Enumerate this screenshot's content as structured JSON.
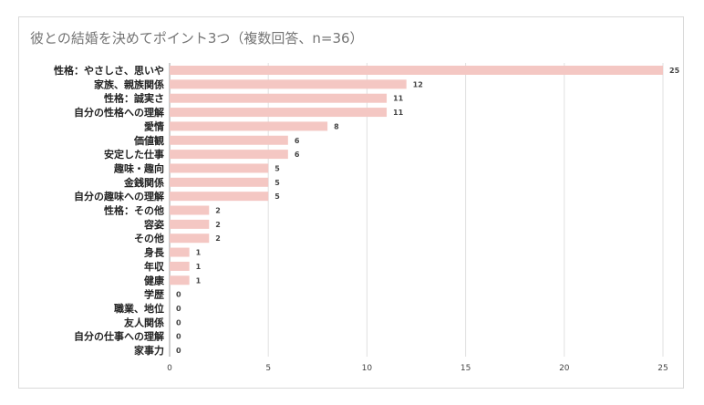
{
  "chart_data": {
    "type": "bar",
    "orientation": "horizontal",
    "title": "彼との結婚を決めてポイント3つ（複数回答、n=36）",
    "categories": [
      "性格：やさしさ、思いや",
      "家族、親族関係",
      "性格：誠実さ",
      "自分の性格への理解",
      "愛情",
      "価値観",
      "安定した仕事",
      "趣味・趣向",
      "金銭関係",
      "自分の趣味への理解",
      "性格：その他",
      "容姿",
      "その他",
      "身長",
      "年収",
      "健康",
      "学歴",
      "職業、地位",
      "友人関係",
      "自分の仕事への理解",
      "家事力"
    ],
    "values": [
      25,
      12,
      11,
      11,
      8,
      6,
      6,
      5,
      5,
      5,
      2,
      2,
      2,
      1,
      1,
      1,
      0,
      0,
      0,
      0,
      0
    ],
    "xticks": [
      0,
      5,
      10,
      15,
      20,
      25
    ],
    "xlim": [
      0,
      25
    ],
    "grid": true,
    "bar_color": "#f4c7c3"
  }
}
